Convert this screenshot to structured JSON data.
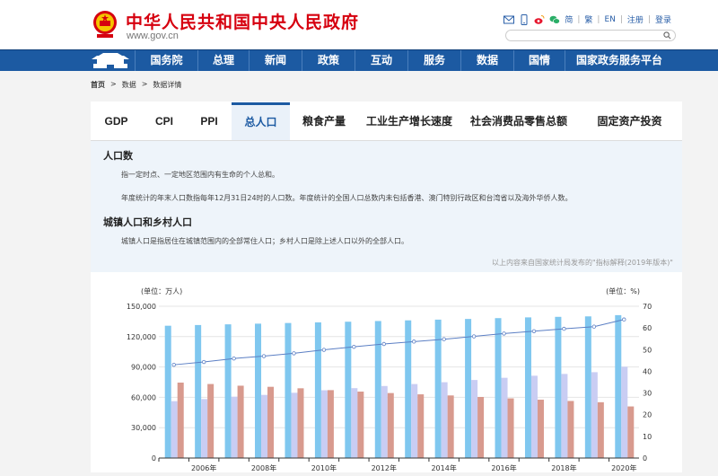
{
  "header": {
    "site_title": "中华人民共和国中央人民政府",
    "site_url": "www.gov.cn",
    "links": [
      "简",
      "繁",
      "EN",
      "注册",
      "登录"
    ],
    "icons": [
      "mail-icon",
      "mobile-icon",
      "weibo-icon",
      "wechat-icon"
    ]
  },
  "nav": {
    "items": [
      "国务院",
      "总理",
      "新闻",
      "政策",
      "互动",
      "服务",
      "数据",
      "国情",
      "国家政务服务平台"
    ]
  },
  "breadcrumb": [
    "首页",
    "数据",
    "数据详情"
  ],
  "tabs": {
    "items": [
      "GDP",
      "CPI",
      "PPI",
      "总人口",
      "粮食产量",
      "工业生产增长速度",
      "社会消费品零售总额",
      "固定资产投资"
    ],
    "active": "总人口"
  },
  "description": {
    "section1_title": "人口数",
    "section1_p1": "指一定时点、一定地区范围内有生命的个人总和。",
    "section1_p2": "年度统计的年末人口数指每年12月31日24时的人口数。年度统计的全国人口总数内未包括香港、澳门特别行政区和台湾省以及海外华侨人数。",
    "section2_title": "城镇人口和乡村人口",
    "section2_p1": "城镇人口是指居住在城镇范围内的全部常住人口；乡村人口是除上述人口以外的全部人口。",
    "source": "以上内容来自国家统计局发布的\"指标解释(2019年版本)\""
  },
  "colors": {
    "brand_red": "#d6000f",
    "nav_blue": "#1c5aa2",
    "total_bar": "#7fc7ef",
    "urban_bar": "#c9cdf3",
    "rural_bar": "#d89a8e",
    "rate_line": "#5b7fc4"
  },
  "chart_data": {
    "type": "bar",
    "left_unit": "(单位：万人)",
    "right_unit": "(单位：%)",
    "left_ticks": [
      "0",
      "30,000",
      "60,000",
      "90,000",
      "120,000",
      "150,000"
    ],
    "right_ticks": [
      "0",
      "10",
      "20",
      "30",
      "40",
      "50",
      "60",
      "70"
    ],
    "ylim_left": [
      0,
      150000
    ],
    "ylim_right": [
      0,
      70
    ],
    "x_tick_labels": [
      "2006年",
      "2008年",
      "2010年",
      "2012年",
      "2014年",
      "2016年",
      "2018年",
      "2020年"
    ],
    "categories": [
      "2005",
      "2006",
      "2007",
      "2008",
      "2009",
      "2010",
      "2011",
      "2012",
      "2013",
      "2014",
      "2015",
      "2016",
      "2017",
      "2018",
      "2019",
      "2020"
    ],
    "series": [
      {
        "key": "total",
        "type": "bar",
        "axis": "left",
        "values": [
          130756,
          131448,
          132129,
          132802,
          133450,
          134091,
          134735,
          135404,
          136072,
          136782,
          137462,
          138271,
          139008,
          139538,
          140005,
          141212
        ]
      },
      {
        "key": "urban",
        "type": "bar",
        "axis": "left",
        "values": [
          56212,
          58288,
          60633,
          62403,
          64512,
          66978,
          69079,
          71182,
          73111,
          74916,
          77116,
          79298,
          81347,
          83137,
          84843,
          90220
        ]
      },
      {
        "key": "rural",
        "type": "bar",
        "axis": "left",
        "values": [
          74544,
          73160,
          71496,
          70399,
          68938,
          67113,
          65656,
          64222,
          62961,
          61866,
          60346,
          58973,
          57661,
          56401,
          55162,
          50992
        ]
      },
      {
        "key": "rate",
        "type": "line",
        "axis": "right",
        "values": [
          43.0,
          44.3,
          45.9,
          47.0,
          48.3,
          49.9,
          51.3,
          52.6,
          53.7,
          54.8,
          56.1,
          57.4,
          58.5,
          59.6,
          60.6,
          63.9
        ]
      }
    ]
  }
}
